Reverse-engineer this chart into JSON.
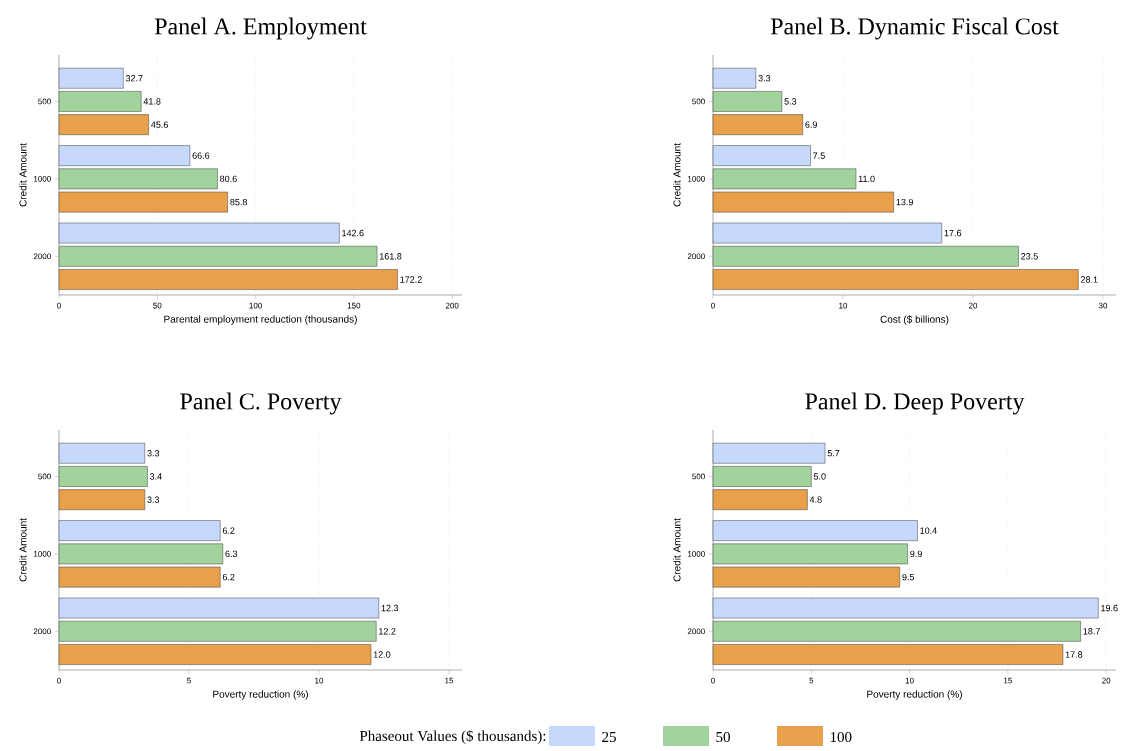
{
  "chart_data": [
    {
      "type": "bar",
      "orientation": "horizontal",
      "title": "Panel A. Employment",
      "xlabel": "Parental employment reduction (thousands)",
      "ylabel": "Credit Amount",
      "categories": [
        "500",
        "1000",
        "2000"
      ],
      "xlim": [
        0,
        205
      ],
      "xticks": [
        0,
        50,
        100,
        150,
        200
      ],
      "grid": "x",
      "legend": false,
      "series": [
        {
          "color": "#c6d9fd",
          "values": [
            32.7,
            66.6,
            142.6
          ],
          "value_labels": [
            "32.7",
            "66.6",
            "142.6"
          ]
        },
        {
          "color": "#a2d39c",
          "values": [
            41.8,
            80.6,
            161.8
          ],
          "value_labels": [
            "41.8",
            "80.6",
            "161.8"
          ]
        },
        {
          "color": "#e8a04a",
          "values": [
            45.6,
            85.8,
            172.2
          ],
          "value_labels": [
            "45.6",
            "85.8",
            "172.2"
          ]
        }
      ]
    },
    {
      "type": "bar",
      "orientation": "horizontal",
      "title": "Panel B. Dynamic Fiscal Cost",
      "xlabel": "Cost ($ billions)",
      "ylabel": "Credit Amount",
      "categories": [
        "500",
        "1000",
        "2000"
      ],
      "xlim": [
        0,
        31
      ],
      "xticks": [
        0,
        10,
        20,
        30
      ],
      "grid": "x",
      "legend": false,
      "series": [
        {
          "color": "#c6d9fd",
          "values": [
            3.3,
            7.5,
            17.6
          ],
          "value_labels": [
            "3.3",
            "7.5",
            "17.6"
          ]
        },
        {
          "color": "#a2d39c",
          "values": [
            5.3,
            11,
            23.5
          ],
          "value_labels": [
            "5.3",
            "11.0",
            "23.5"
          ]
        },
        {
          "color": "#e8a04a",
          "values": [
            6.9,
            13.9,
            28.1
          ],
          "value_labels": [
            "6.9",
            "13.9",
            "28.1"
          ]
        }
      ]
    },
    {
      "type": "bar",
      "orientation": "horizontal",
      "title": "Panel C. Poverty",
      "xlabel": "Poverty reduction (%)",
      "ylabel": "Credit Amount",
      "categories": [
        "500",
        "1000",
        "2000"
      ],
      "xlim": [
        0,
        15.5
      ],
      "xticks": [
        0,
        5,
        10,
        15
      ],
      "grid": "x",
      "legend": false,
      "series": [
        {
          "color": "#c6d9fd",
          "values": [
            3.3,
            6.2,
            12.3
          ],
          "value_labels": [
            "3.3",
            "6.2",
            "12.3"
          ]
        },
        {
          "color": "#a2d39c",
          "values": [
            3.4,
            6.3,
            12.2
          ],
          "value_labels": [
            "3.4",
            "6.3",
            "12.2"
          ]
        },
        {
          "color": "#e8a04a",
          "values": [
            3.3,
            6.2,
            12
          ],
          "value_labels": [
            "3.3",
            "6.2",
            "12.0"
          ]
        }
      ]
    },
    {
      "type": "bar",
      "orientation": "horizontal",
      "title": "Panel D. Deep Poverty",
      "xlabel": "Poverty reduction (%)",
      "ylabel": "Credit Amount",
      "categories": [
        "500",
        "1000",
        "2000"
      ],
      "xlim": [
        0,
        20.5
      ],
      "xticks": [
        0,
        5,
        10,
        15,
        20
      ],
      "grid": "x",
      "legend": "bottom",
      "legend_title": "Phaseout Values ($ thousands):",
      "series": [
        {
          "name": "25",
          "color": "#c6d9fd",
          "values": [
            5.7,
            10.4,
            19.6
          ],
          "value_labels": [
            "5.7",
            "10.4",
            "19.6"
          ]
        },
        {
          "name": "50",
          "color": "#a2d39c",
          "values": [
            5,
            9.9,
            18.7
          ],
          "value_labels": [
            "5.0",
            "9.9",
            "18.7"
          ]
        },
        {
          "name": "100",
          "color": "#e8a04a",
          "values": [
            4.8,
            9.5,
            17.8
          ],
          "value_labels": [
            "4.8",
            "9.5",
            "17.8"
          ]
        }
      ]
    }
  ]
}
